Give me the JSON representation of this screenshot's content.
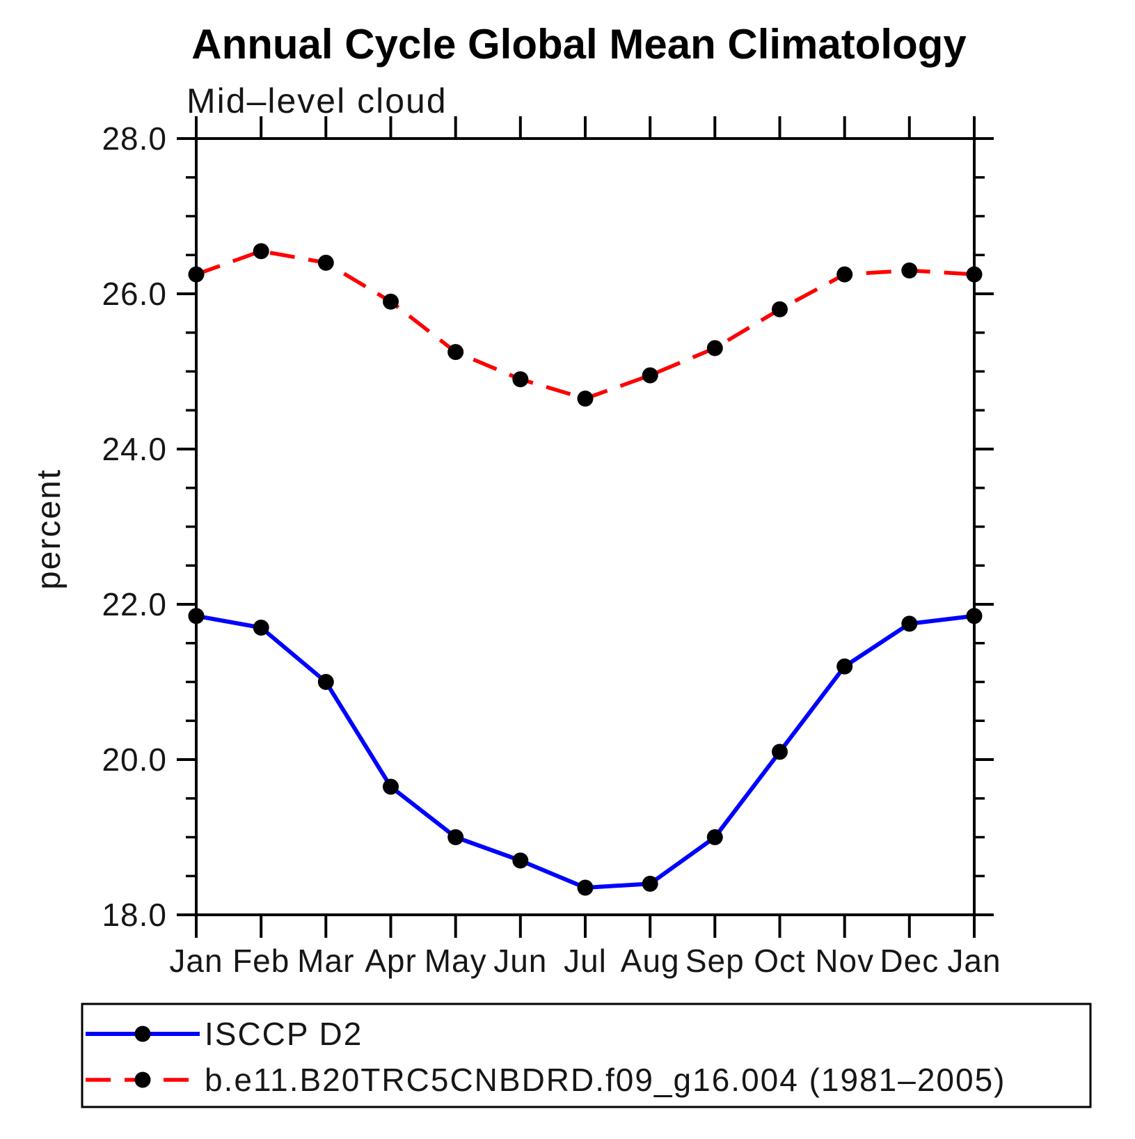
{
  "chart_data": {
    "type": "line",
    "title": "Annual Cycle Global Mean Climatology",
    "subtitle": "Mid–level cloud",
    "ylabel": "percent",
    "x_categories": [
      "Jan",
      "Feb",
      "Mar",
      "Apr",
      "May",
      "Jun",
      "Jul",
      "Aug",
      "Sep",
      "Oct",
      "Nov",
      "Dec",
      "Jan"
    ],
    "ylim": [
      18.0,
      28.0
    ],
    "ytick_major": [
      18.0,
      20.0,
      22.0,
      24.0,
      26.0,
      28.0
    ],
    "ytick_major_labels": [
      "18.0",
      "20.0",
      "22.0",
      "24.0",
      "26.0",
      "28.0"
    ],
    "ytick_minor_step": 0.5,
    "grid": false,
    "legend_position": "bottom-box",
    "axis_color": "#000000",
    "marker_color": "#000000",
    "series": [
      {
        "name": "ISCCP D2",
        "color": "#0000ff",
        "line_style": "solid",
        "marker": "circle",
        "values": [
          21.85,
          21.7,
          21.0,
          19.65,
          19.0,
          18.7,
          18.35,
          18.4,
          19.0,
          20.1,
          21.2,
          21.75,
          21.85
        ]
      },
      {
        "name": "b.e11.B20TRC5CNBDRD.f09_g16.004 (1981–2005)",
        "color": "#ff0000",
        "line_style": "dashed",
        "marker": "circle",
        "values": [
          26.25,
          26.55,
          26.4,
          25.9,
          25.25,
          24.9,
          24.65,
          24.95,
          25.3,
          25.8,
          26.25,
          26.3,
          26.25
        ]
      }
    ]
  }
}
